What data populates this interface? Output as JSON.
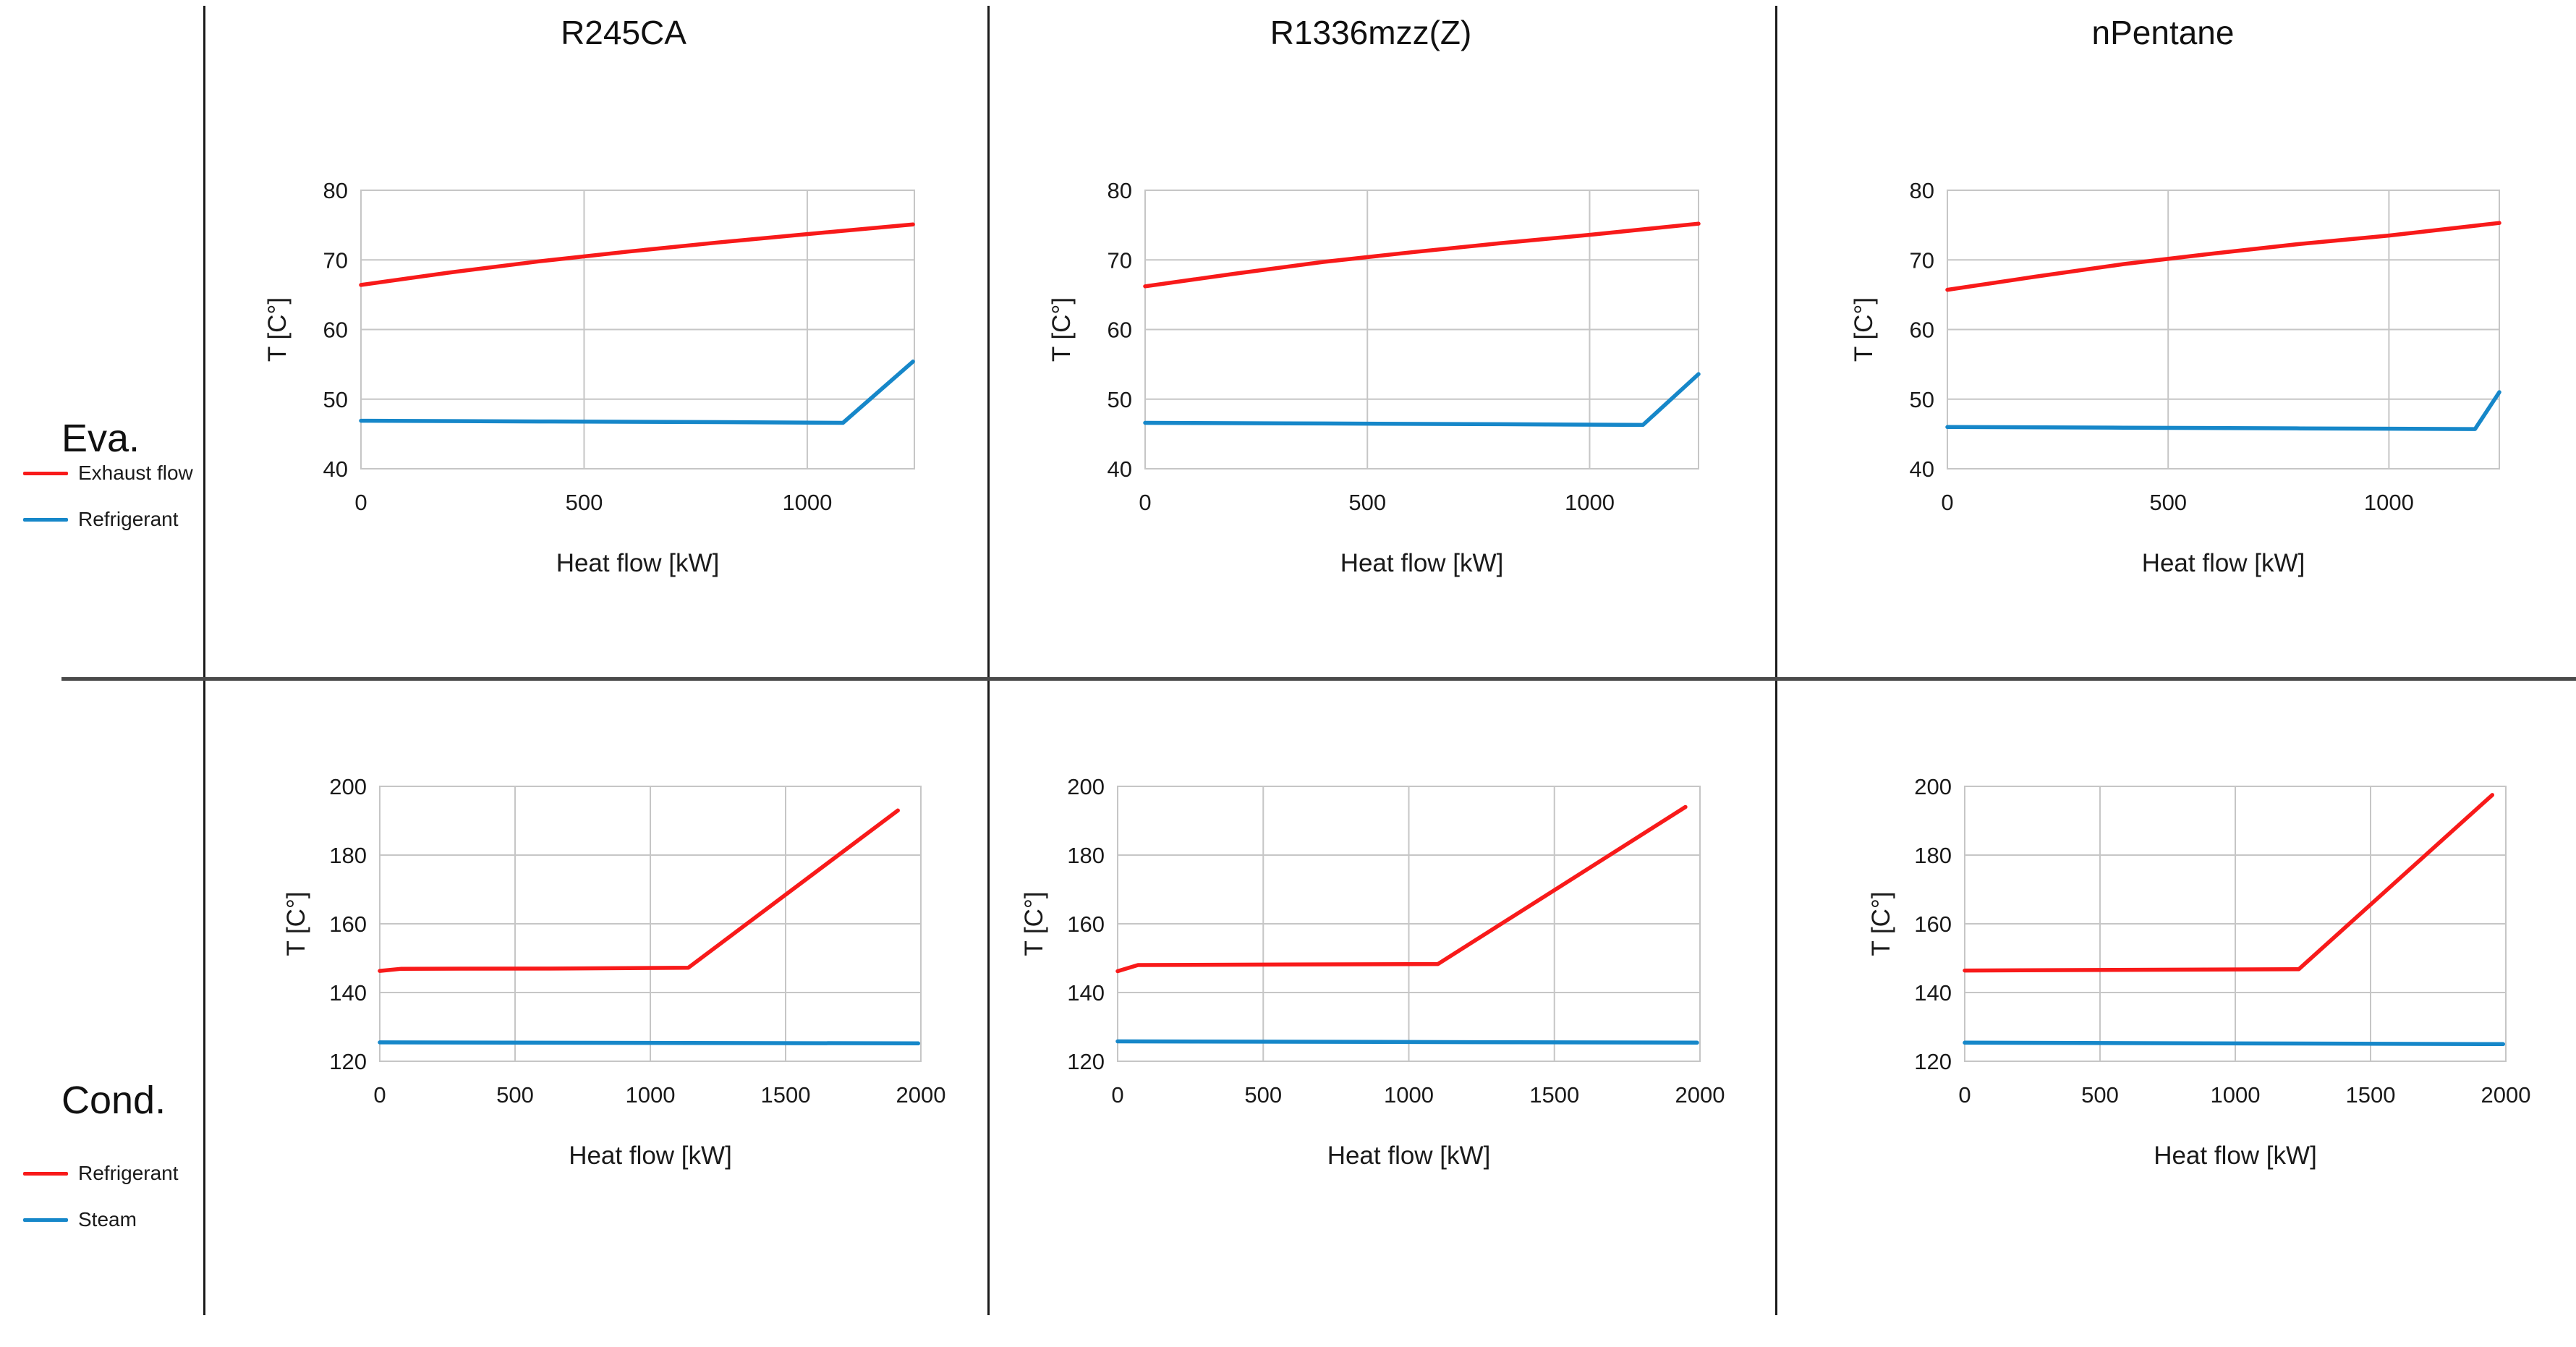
{
  "page": {
    "background": "#ffffff"
  },
  "row_labels": [
    {
      "label": "Eva."
    },
    {
      "label": "Cond."
    }
  ],
  "column_titles": [
    "R245CA",
    "R1336mzz(Z)",
    "nPentane"
  ],
  "colors": {
    "red_series": "#f81a1a",
    "blue_series": "#1687c9",
    "gridline": "#c6c6c6",
    "divider": "#1a1a1a"
  },
  "legends": {
    "eva": [
      {
        "name": "Exhaust flow",
        "color": "#f81a1a"
      },
      {
        "name": "Refrigerant",
        "color": "#1687c9"
      }
    ],
    "cond": [
      {
        "name": "Refrigerant",
        "color": "#f81a1a"
      },
      {
        "name": "Steam",
        "color": "#1687c9"
      }
    ]
  },
  "chart_data": [
    {
      "type": "line",
      "row": "Eva.",
      "column": "R245CA",
      "xlabel": "Heat flow [kW]",
      "ylabel": "T [C°]",
      "xlim": [
        0,
        1240
      ],
      "ylim": [
        40,
        80
      ],
      "xticks": [
        0,
        500,
        1000
      ],
      "yticks": [
        40,
        50,
        60,
        70,
        80
      ],
      "grid": true,
      "legend_position": "left",
      "series": [
        {
          "name": "Exhaust flow",
          "color": "#f81a1a",
          "points": [
            [
              0,
              66.4
            ],
            [
              200,
              68.2
            ],
            [
              400,
              69.8
            ],
            [
              600,
              71.2
            ],
            [
              800,
              72.5
            ],
            [
              1000,
              73.7
            ],
            [
              1237,
              75.1
            ]
          ]
        },
        {
          "name": "Refrigerant",
          "color": "#1687c9",
          "points": [
            [
              0,
              46.9
            ],
            [
              400,
              46.8
            ],
            [
              800,
              46.7
            ],
            [
              1080,
              46.6
            ],
            [
              1237,
              55.4
            ]
          ]
        }
      ]
    },
    {
      "type": "line",
      "row": "Eva.",
      "column": "R1336mzz(Z)",
      "xlabel": "Heat flow [kW]",
      "ylabel": "T [C°]",
      "xlim": [
        0,
        1245
      ],
      "ylim": [
        40,
        80
      ],
      "xticks": [
        0,
        500,
        1000
      ],
      "yticks": [
        40,
        50,
        60,
        70,
        80
      ],
      "grid": true,
      "legend_position": "left",
      "series": [
        {
          "name": "Exhaust flow",
          "color": "#f81a1a",
          "points": [
            [
              0,
              66.2
            ],
            [
              200,
              68.0
            ],
            [
              400,
              69.7
            ],
            [
              600,
              71.1
            ],
            [
              800,
              72.4
            ],
            [
              1000,
              73.6
            ],
            [
              1245,
              75.2
            ]
          ]
        },
        {
          "name": "Refrigerant",
          "color": "#1687c9",
          "points": [
            [
              0,
              46.6
            ],
            [
              400,
              46.5
            ],
            [
              800,
              46.4
            ],
            [
              1120,
              46.3
            ],
            [
              1245,
              53.6
            ]
          ]
        }
      ]
    },
    {
      "type": "line",
      "row": "Eva.",
      "column": "nPentane",
      "xlabel": "Heat flow [kW]",
      "ylabel": "T [C°]",
      "xlim": [
        0,
        1250
      ],
      "ylim": [
        40,
        80
      ],
      "xticks": [
        0,
        500,
        1000
      ],
      "yticks": [
        40,
        50,
        60,
        70,
        80
      ],
      "grid": true,
      "legend_position": "left",
      "series": [
        {
          "name": "Exhaust flow",
          "color": "#f81a1a",
          "points": [
            [
              0,
              65.7
            ],
            [
              200,
              67.6
            ],
            [
              400,
              69.4
            ],
            [
              600,
              70.9
            ],
            [
              800,
              72.3
            ],
            [
              1000,
              73.5
            ],
            [
              1250,
              75.3
            ]
          ]
        },
        {
          "name": "Refrigerant",
          "color": "#1687c9",
          "points": [
            [
              0,
              46.0
            ],
            [
              400,
              45.9
            ],
            [
              800,
              45.8
            ],
            [
              1195,
              45.7
            ],
            [
              1250,
              51.0
            ]
          ]
        }
      ]
    },
    {
      "type": "line",
      "row": "Cond.",
      "column": "R245CA",
      "xlabel": "Heat flow [kW]",
      "ylabel": "T [C°]",
      "xlim": [
        0,
        2000
      ],
      "ylim": [
        120,
        200
      ],
      "xticks": [
        0,
        500,
        1000,
        1500,
        2000
      ],
      "yticks": [
        120,
        140,
        160,
        180,
        200
      ],
      "grid": true,
      "legend_position": "left",
      "series": [
        {
          "name": "Refrigerant",
          "color": "#f81a1a",
          "points": [
            [
              0,
              146.3
            ],
            [
              80,
              146.9
            ],
            [
              700,
              147.0
            ],
            [
              1140,
              147.2
            ],
            [
              1915,
              193.0
            ]
          ]
        },
        {
          "name": "Steam",
          "color": "#1687c9",
          "points": [
            [
              0,
              125.5
            ],
            [
              1990,
              125.2
            ]
          ]
        }
      ]
    },
    {
      "type": "line",
      "row": "Cond.",
      "column": "R1336mzz(Z)",
      "xlabel": "Heat flow [kW]",
      "ylabel": "T [C°]",
      "xlim": [
        0,
        2000
      ],
      "ylim": [
        120,
        200
      ],
      "xticks": [
        0,
        500,
        1000,
        1500,
        2000
      ],
      "yticks": [
        120,
        140,
        160,
        180,
        200
      ],
      "grid": true,
      "legend_position": "left",
      "series": [
        {
          "name": "Refrigerant",
          "color": "#f81a1a",
          "points": [
            [
              0,
              146.2
            ],
            [
              70,
              148.0
            ],
            [
              1100,
              148.3
            ],
            [
              1950,
              194.0
            ]
          ]
        },
        {
          "name": "Steam",
          "color": "#1687c9",
          "points": [
            [
              0,
              125.8
            ],
            [
              1990,
              125.4
            ]
          ]
        }
      ]
    },
    {
      "type": "line",
      "row": "Cond.",
      "column": "nPentane",
      "xlabel": "Heat flow [kW]",
      "ylabel": "T [C°]",
      "xlim": [
        0,
        2000
      ],
      "ylim": [
        120,
        200
      ],
      "xticks": [
        0,
        500,
        1000,
        1500,
        2000
      ],
      "yticks": [
        120,
        140,
        160,
        180,
        200
      ],
      "grid": true,
      "legend_position": "left",
      "series": [
        {
          "name": "Refrigerant",
          "color": "#f81a1a",
          "points": [
            [
              0,
              146.4
            ],
            [
              550,
              146.6
            ],
            [
              1235,
              146.8
            ],
            [
              1950,
              197.5
            ]
          ]
        },
        {
          "name": "Steam",
          "color": "#1687c9",
          "points": [
            [
              0,
              125.4
            ],
            [
              1990,
              125.0
            ]
          ]
        }
      ]
    }
  ]
}
